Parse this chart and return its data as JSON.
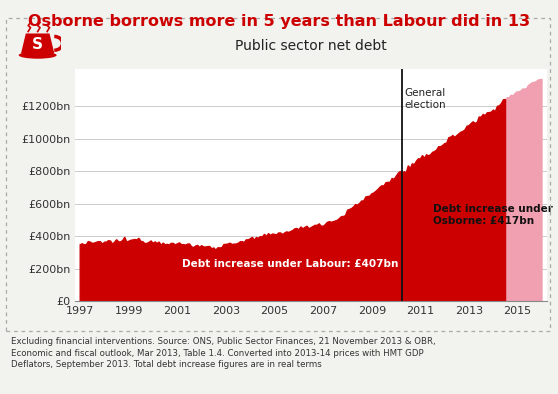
{
  "title": "Osborne borrows more in 5 years than Labour did in 13",
  "subtitle": "Public sector net debt",
  "background_color": "#f2f2ee",
  "plot_bg_color": "#ffffff",
  "title_color": "#cc0000",
  "subtitle_color": "#222222",
  "labour_fill_color": "#cc0000",
  "osborne_fill_color": "#f0a0b0",
  "election_line_color": "#111111",
  "annotation_labour": "Debt increase under Labour: £407bn",
  "annotation_osborne": "Debt increase under\nOsborne: £417bn",
  "election_label": "General\nelection",
  "election_year": 2010.25,
  "ylabel_ticks": [
    "£0",
    "£200bn",
    "£400bn",
    "£600bn",
    "£800bn",
    "£1000bn",
    "£1200bn"
  ],
  "ylabel_values": [
    0,
    200,
    400,
    600,
    800,
    1000,
    1200
  ],
  "ylim": [
    0,
    1430
  ],
  "xlim": [
    1996.8,
    2016.2
  ],
  "xticks": [
    1997,
    1999,
    2001,
    2003,
    2005,
    2007,
    2009,
    2011,
    2013,
    2015
  ],
  "footnote": "Excluding financial interventions. Source: ONS, Public Sector Finances, 21 November 2013 & OBR,\nEconomic and fiscal outlook, Mar 2013, Table 1.4. Converted into 2013-14 prices with HMT GDP\nDeflators, September 2013. Total debt increase figures are in real terms"
}
